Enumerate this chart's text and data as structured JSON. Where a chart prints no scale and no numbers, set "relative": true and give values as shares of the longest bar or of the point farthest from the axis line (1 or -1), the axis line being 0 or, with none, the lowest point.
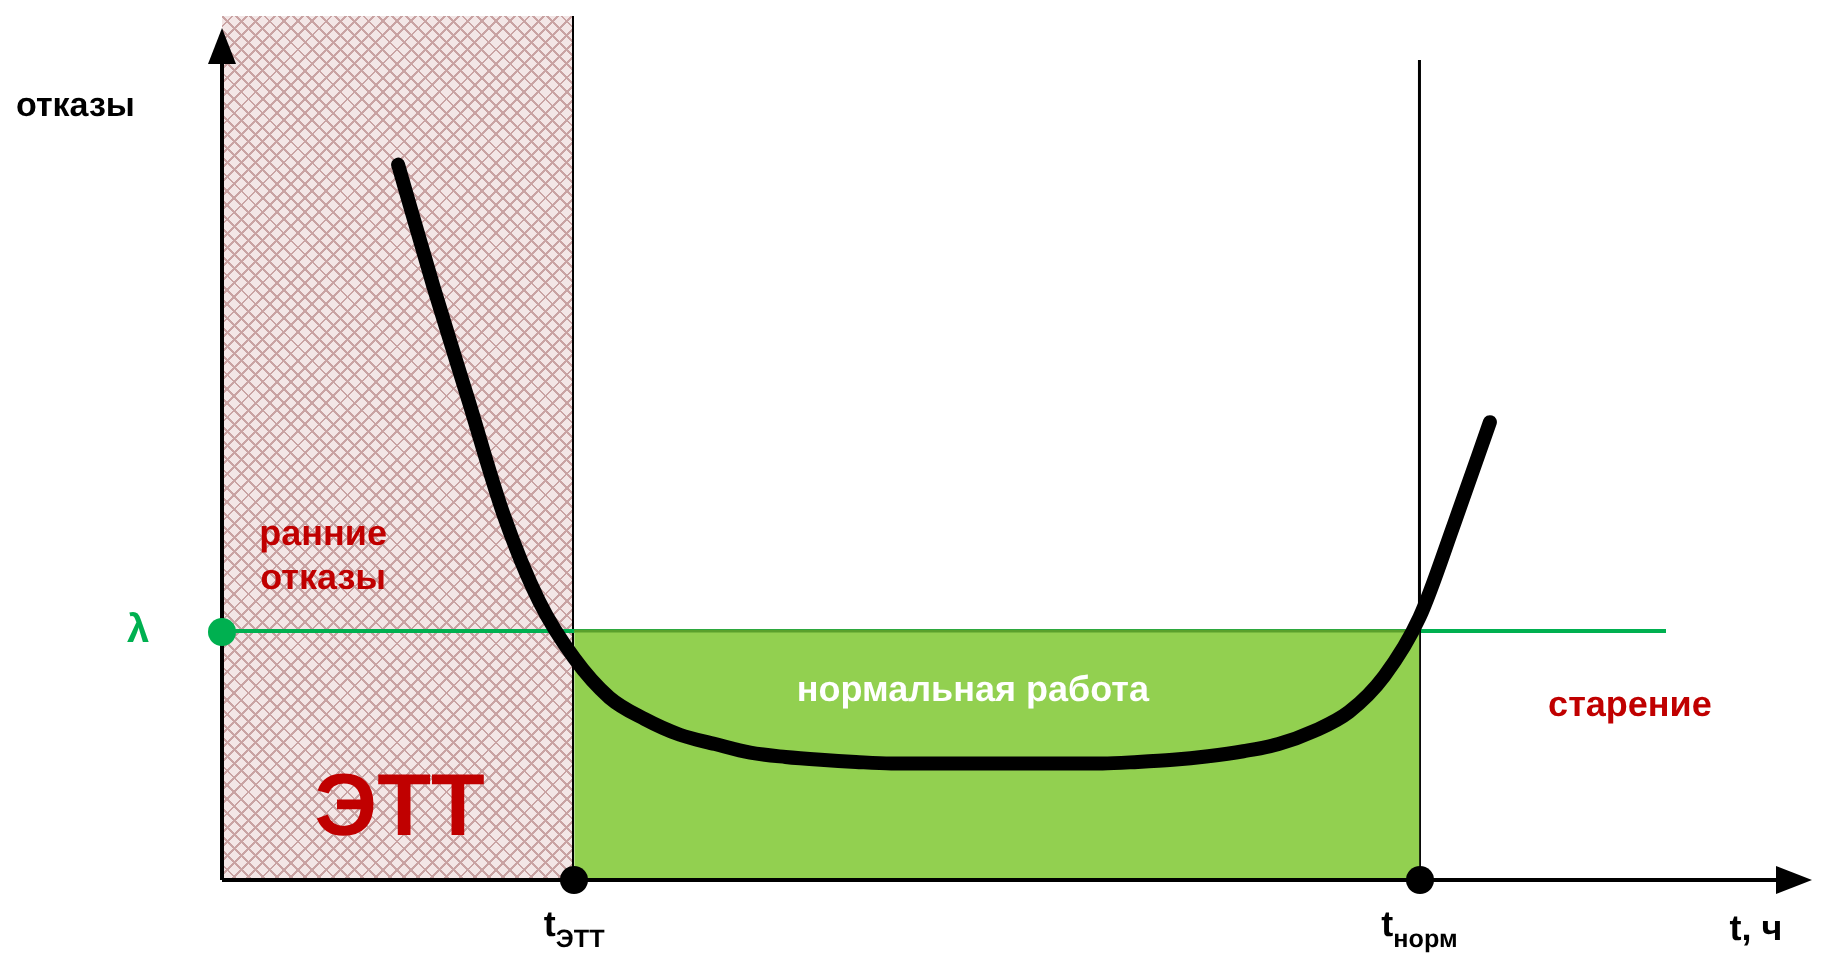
{
  "chart_data": {
    "type": "line",
    "relative": true,
    "xlabel": "t, ч",
    "ylabel": "отказы",
    "categories": [
      null,
      null,
      null,
      null,
      null,
      null,
      null,
      null,
      null,
      null,
      "t$_{ЭТТ}$",
      null,
      null,
      null,
      null,
      null,
      null,
      null,
      null,
      null,
      null,
      null,
      null,
      null,
      null,
      null,
      null,
      null,
      null,
      null,
      null,
      null,
      null,
      null,
      "t$_{норм}$",
      null,
      null,
      null,
      null,
      null,
      null,
      null
    ],
    "series": [
      {
        "type": "area",
        "color": "#92d050",
        "values": [
          null,
          null,
          null,
          null,
          null,
          null,
          null,
          null,
          null,
          null,
          0.348,
          0.348,
          0.348,
          0.348,
          0.348,
          0.348,
          0.348,
          0.348,
          0.348,
          0.348,
          0.348,
          0.348,
          0.348,
          0.348,
          0.348,
          0.348,
          0.348,
          0.348,
          0.348,
          0.348,
          0.348,
          0.348,
          0.348,
          0.348,
          0.348,
          null,
          null,
          null,
          null,
          null,
          null,
          null
        ]
      },
      {
        "color": "#000000",
        "values": [
          null,
          null,
          null,
          null,
          null,
          1.0,
          0.83,
          0.67,
          0.51,
          0.39,
          0.31,
          0.255,
          0.225,
          0.203,
          0.19,
          0.178,
          0.172,
          0.168,
          0.165,
          0.163,
          0.163,
          0.163,
          0.163,
          0.163,
          0.163,
          0.163,
          0.165,
          0.168,
          0.173,
          0.18,
          0.19,
          0.208,
          0.235,
          0.285,
          0.367,
          0.5,
          0.64,
          null,
          null,
          null,
          null,
          null
        ]
      }
    ],
    "ref_lines": [
      {
        "axis": "y",
        "value": 0.348,
        "label": "λ",
        "color": "#00b050"
      },
      {
        "axis": "x",
        "value": "t$_{норм}$",
        "color": "#000000"
      }
    ],
    "annotations": [
      "ранние отказы",
      "нормальная работа",
      "старение",
      "ЭТТ"
    ]
  }
}
